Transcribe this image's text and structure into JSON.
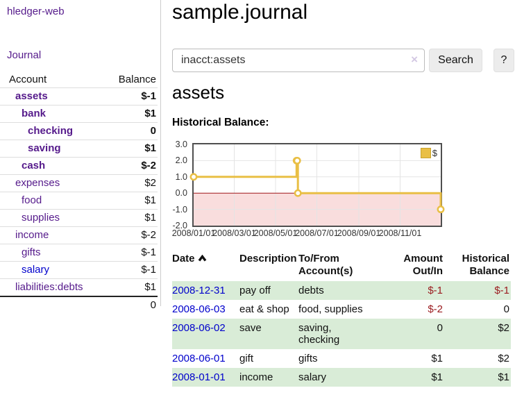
{
  "app": {
    "brand": "hledger-web",
    "nav_journal": "Journal"
  },
  "sidebar": {
    "accounts_header": {
      "account": "Account",
      "balance": "Balance"
    },
    "accounts": [
      {
        "name": "assets",
        "depth": 1,
        "balance": "$-1",
        "emphasis": true,
        "link_color": "purple"
      },
      {
        "name": "bank",
        "depth": 2,
        "balance": "$1",
        "emphasis": true,
        "link_color": "purple"
      },
      {
        "name": "checking",
        "depth": 3,
        "balance": "0",
        "emphasis": true,
        "link_color": "purple"
      },
      {
        "name": "saving",
        "depth": 3,
        "balance": "$1",
        "emphasis": true,
        "link_color": "purple"
      },
      {
        "name": "cash",
        "depth": 2,
        "balance": "$-2",
        "emphasis": true,
        "link_color": "purple"
      },
      {
        "name": "expenses",
        "depth": 1,
        "balance": "$2",
        "emphasis": false,
        "link_color": "purple"
      },
      {
        "name": "food",
        "depth": 2,
        "balance": "$1",
        "emphasis": false,
        "link_color": "purple"
      },
      {
        "name": "supplies",
        "depth": 2,
        "balance": "$1",
        "emphasis": false,
        "link_color": "purple"
      },
      {
        "name": "income",
        "depth": 1,
        "balance": "$-2",
        "emphasis": false,
        "link_color": "purple"
      },
      {
        "name": "gifts",
        "depth": 2,
        "balance": "$-1",
        "emphasis": false,
        "link_color": "purple"
      },
      {
        "name": "salary",
        "depth": 2,
        "balance": "$-1",
        "emphasis": false,
        "link_color": "blue"
      },
      {
        "name": "liabilities:debts",
        "depth": 1,
        "balance": "$1",
        "emphasis": false,
        "link_color": "purple"
      }
    ],
    "total": "0"
  },
  "header": {
    "title": "sample.journal"
  },
  "search": {
    "value": "inacct:assets",
    "clear_icon": "×",
    "button": "Search",
    "help_button": "?"
  },
  "account_page": {
    "title": "assets",
    "chart_label": "Historical Balance:"
  },
  "chart_data": {
    "type": "line",
    "style": "step",
    "title": "Historical Balance:",
    "series": [
      {
        "name": "$",
        "color": "#e9bf45",
        "points": [
          [
            "2008-01-01",
            1
          ],
          [
            "2008-06-01",
            2
          ],
          [
            "2008-06-02",
            2
          ],
          [
            "2008-06-03",
            0
          ],
          [
            "2008-12-31",
            -1
          ]
        ]
      }
    ],
    "xlim": [
      "2008-01-01",
      "2008-12-31"
    ],
    "ylim": [
      -2,
      3
    ],
    "x_ticks": [
      "2008/01/01",
      "2008/03/01",
      "2008/05/01",
      "2008/07/01",
      "2008/09/01",
      "2008/11/01"
    ],
    "y_ticks": [
      3.0,
      2.0,
      1.0,
      0.0,
      -1.0,
      -2.0
    ],
    "legend": {
      "label": "$",
      "position": "top-right"
    },
    "grid": true,
    "grid_color": "#e4e4e4",
    "below_zero_fill": "#f9dddd",
    "zero_line_color": "#a01418"
  },
  "register": {
    "columns": [
      "Date",
      "Description",
      "To/From Account(s)",
      "Amount Out/In",
      "Historical Balance"
    ],
    "sort": {
      "column": "Date",
      "direction": "ascending"
    },
    "rows": [
      {
        "date": "2008-12-31",
        "description": "pay off",
        "accounts": "debts",
        "amount": "$-1",
        "balance": "$-1"
      },
      {
        "date": "2008-06-03",
        "description": "eat & shop",
        "accounts": "food, supplies",
        "amount": "$-2",
        "balance": "0"
      },
      {
        "date": "2008-06-02",
        "description": "save",
        "accounts": "saving, checking",
        "amount": "0",
        "balance": "$2"
      },
      {
        "date": "2008-06-01",
        "description": "gift",
        "accounts": "gifts",
        "amount": "$1",
        "balance": "$2"
      },
      {
        "date": "2008-01-01",
        "description": "income",
        "accounts": "salary",
        "amount": "$1",
        "balance": "$1"
      }
    ]
  },
  "colors": {
    "link_purple": "#551a8b",
    "link_blue": "#0000cc",
    "negative_strong": "#9b1c20",
    "negative_weak": "#b4726f",
    "row_stripe_green": "#d9ecd7",
    "chart_line_gold": "#e9bf45",
    "chart_negative_region": "#f9dddd"
  }
}
